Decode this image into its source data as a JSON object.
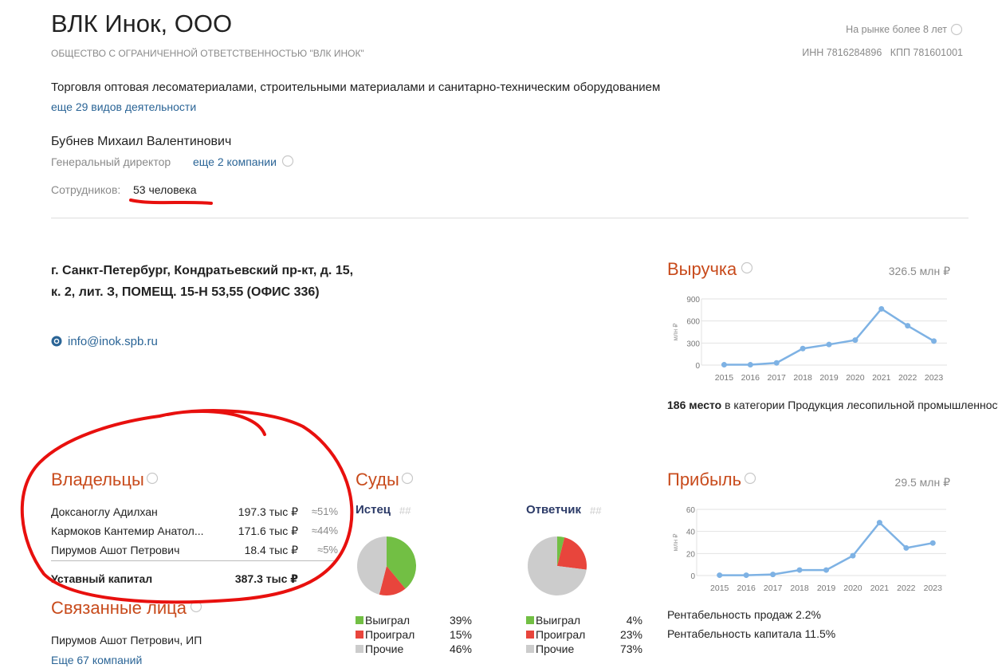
{
  "header": {
    "title": "ВЛК Инок, ООО",
    "subtitle": "ОБЩЕСТВО С ОГРАНИЧЕННОЙ ОТВЕТСТВЕННОСТЬЮ \"ВЛК ИНОК\"",
    "market": "На рынке более 8 лет",
    "inn": "ИНН 7816284896",
    "kpp": "КПП 781601001"
  },
  "activity": {
    "main": "Торговля оптовая лесоматериалами, строительными материалами и санитарно-техническим оборудованием",
    "more": "еще 29 видов деятельности"
  },
  "director": {
    "name": "Бубнев Михаил Валентинович",
    "role": "Генеральный директор",
    "more": "еще 2 компании"
  },
  "employees": {
    "label": "Сотрудников:",
    "value": "53 человека"
  },
  "address": {
    "text": "г. Санкт-Петербург, Кондратьевский пр-кт, д. 15, к. 2, лит. З, ПОМЕЩ. 15-Н 53,55 (ОФИС 336)",
    "email": "info@inok.spb.ru"
  },
  "owners": {
    "title": "Владельцы",
    "rows": [
      {
        "name": "Доксаноглу Адилхан",
        "amount": "197.3 тыс ₽",
        "share": "≈51%"
      },
      {
        "name": "Кармоков Кантемир Анатол...",
        "amount": "171.6 тыс ₽",
        "share": "≈44%"
      },
      {
        "name": "Пирумов Ашот Петрович",
        "amount": "18.4 тыс ₽",
        "share": "≈5%"
      }
    ],
    "capital_label": "Уставный капитал",
    "capital": "387.3 тыс ₽"
  },
  "related": {
    "title": "Связанные лица",
    "item": "Пирумов Ашот Петрович, ИП",
    "more": "Еще 67 компаний"
  },
  "courts": {
    "title": "Суды"
  },
  "revenue_rank": {
    "place": "186 место",
    "text": "в категории Продукция лесопильной промышленности"
  },
  "profitability": [
    "Рентабельность продаж 2.2%",
    "Рентабельность капитала 11.5%"
  ],
  "chart_data": [
    {
      "type": "line",
      "title": "Выручка",
      "total": "326.5 млн ₽",
      "ylabel": "млн ₽",
      "categories": [
        "2015",
        "2016",
        "2017",
        "2018",
        "2019",
        "2020",
        "2021",
        "2022",
        "2023"
      ],
      "values": [
        5,
        5,
        30,
        225,
        280,
        340,
        765,
        535,
        326.5
      ],
      "color": "#7eb2e4",
      "ylim": [
        0,
        900
      ],
      "yticks": [
        0,
        300,
        600,
        900
      ],
      "grid": true
    },
    {
      "type": "line",
      "title": "Прибыль",
      "total": "29.5 млн ₽",
      "ylabel": "млн ₽",
      "categories": [
        "2015",
        "2016",
        "2017",
        "2018",
        "2019",
        "2020",
        "2021",
        "2022",
        "2023"
      ],
      "values": [
        0.3,
        0.3,
        1,
        5,
        5,
        18,
        48,
        25,
        29.5
      ],
      "color": "#7eb2e4",
      "ylim": [
        0,
        60
      ],
      "yticks": [
        0,
        20,
        40,
        60
      ],
      "grid": true
    },
    {
      "type": "pie",
      "title": "Истец",
      "tag": "##",
      "categories": [
        "Выиграл",
        "Проиграл",
        "Прочие"
      ],
      "values": [
        39,
        15,
        46
      ],
      "value_labels": [
        "39%",
        "15%",
        "46%"
      ],
      "colors": [
        "#72bf44",
        "#e8453c",
        "#cccccc"
      ]
    },
    {
      "type": "pie",
      "title": "Ответчик",
      "tag": "##",
      "categories": [
        "Выиграл",
        "Проиграл",
        "Прочие"
      ],
      "values": [
        4,
        23,
        73
      ],
      "value_labels": [
        "4%",
        "23%",
        "73%"
      ],
      "colors": [
        "#72bf44",
        "#e8453c",
        "#cccccc"
      ]
    }
  ]
}
